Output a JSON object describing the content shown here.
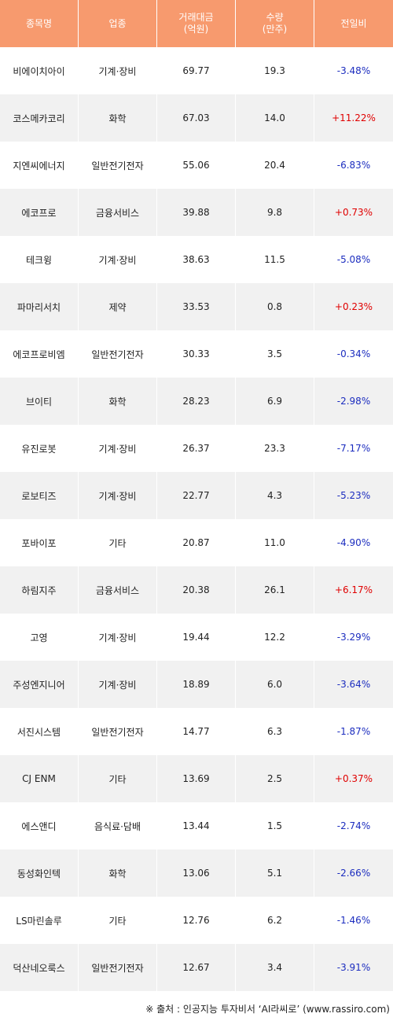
{
  "headers": [
    "종목명",
    "업종",
    "거래대금\n(억원)",
    "수량\n(만주)",
    "전일비"
  ],
  "rows": [
    {
      "name": "비에이치아이",
      "sector": "기계·장비",
      "amount": "69.77",
      "qty": "19.3",
      "change": "-3.48%"
    },
    {
      "name": "코스메카코리",
      "sector": "화학",
      "amount": "67.03",
      "qty": "14.0",
      "change": "+11.22%"
    },
    {
      "name": "지엔씨에너지",
      "sector": "일반전기전자",
      "amount": "55.06",
      "qty": "20.4",
      "change": "-6.83%"
    },
    {
      "name": "에코프로",
      "sector": "금융서비스",
      "amount": "39.88",
      "qty": "9.8",
      "change": "+0.73%"
    },
    {
      "name": "테크윙",
      "sector": "기계·장비",
      "amount": "38.63",
      "qty": "11.5",
      "change": "-5.08%"
    },
    {
      "name": "파마리서치",
      "sector": "제약",
      "amount": "33.53",
      "qty": "0.8",
      "change": "+0.23%"
    },
    {
      "name": "에코프로비엠",
      "sector": "일반전기전자",
      "amount": "30.33",
      "qty": "3.5",
      "change": "-0.34%"
    },
    {
      "name": "브이티",
      "sector": "화학",
      "amount": "28.23",
      "qty": "6.9",
      "change": "-2.98%"
    },
    {
      "name": "유진로봇",
      "sector": "기계·장비",
      "amount": "26.37",
      "qty": "23.3",
      "change": "-7.17%"
    },
    {
      "name": "로보티즈",
      "sector": "기계·장비",
      "amount": "22.77",
      "qty": "4.3",
      "change": "-5.23%"
    },
    {
      "name": "포바이포",
      "sector": "기타",
      "amount": "20.87",
      "qty": "11.0",
      "change": "-4.90%"
    },
    {
      "name": "하림지주",
      "sector": "금융서비스",
      "amount": "20.38",
      "qty": "26.1",
      "change": "+6.17%"
    },
    {
      "name": "고영",
      "sector": "기계·장비",
      "amount": "19.44",
      "qty": "12.2",
      "change": "-3.29%"
    },
    {
      "name": "주성엔지니어",
      "sector": "기계·장비",
      "amount": "18.89",
      "qty": "6.0",
      "change": "-3.64%"
    },
    {
      "name": "서진시스템",
      "sector": "일반전기전자",
      "amount": "14.77",
      "qty": "6.3",
      "change": "-1.87%"
    },
    {
      "name": "CJ ENM",
      "sector": "기타",
      "amount": "13.69",
      "qty": "2.5",
      "change": "+0.37%"
    },
    {
      "name": "에스앤디",
      "sector": "음식료·담배",
      "amount": "13.44",
      "qty": "1.5",
      "change": "-2.74%"
    },
    {
      "name": "동성화인텍",
      "sector": "화학",
      "amount": "13.06",
      "qty": "5.1",
      "change": "-2.66%"
    },
    {
      "name": "LS마린솔루",
      "sector": "기타",
      "amount": "12.76",
      "qty": "6.2",
      "change": "-1.46%"
    },
    {
      "name": "덕산네오룩스",
      "sector": "일반전기전자",
      "amount": "12.67",
      "qty": "3.4",
      "change": "-3.91%"
    }
  ],
  "footer": "※ 출처 : 인공지능 투자비서 ‘AI라씨로’ (www.rassiro.com)",
  "colors": {
    "header_bg": "#f79a6e",
    "row_alt_bg": "#f1f1f1",
    "up": "#e00000",
    "down": "#1c2dbf"
  }
}
